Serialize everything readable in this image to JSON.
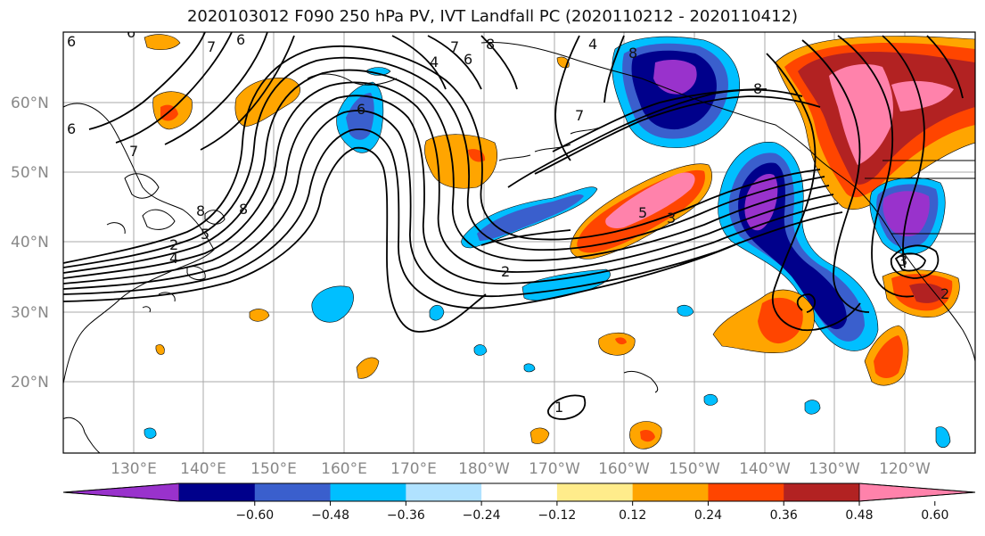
{
  "title": "2020103012 F090 250 hPa PV, IVT Landfall PC (2020110212 - 2020110412)",
  "lat_labels": [
    "60°N",
    "50°N",
    "40°N",
    "30°N",
    "20°N"
  ],
  "lon_labels": [
    "130°E",
    "140°E",
    "150°E",
    "160°E",
    "170°E",
    "180°W",
    "170°W",
    "160°W",
    "150°W",
    "140°W",
    "130°W",
    "120°W"
  ],
  "colorbar": {
    "ticks": [
      "−0.60",
      "−0.48",
      "−0.36",
      "−0.24",
      "−0.12",
      "0.12",
      "0.24",
      "0.36",
      "0.48",
      "0.60"
    ],
    "colors": [
      "#9932cc",
      "#00008b",
      "#3a5fcd",
      "#00bfff",
      "#b0e2ff",
      "#ffffff",
      "#ffec8b",
      "#ffa500",
      "#ff4500",
      "#b22222",
      "#ff82ab"
    ]
  },
  "contour_labels": [
    "6",
    "6",
    "7",
    "7",
    "8",
    "4",
    "6",
    "8",
    "4",
    "6",
    "7",
    "8",
    "6",
    "7",
    "8",
    "5",
    "3",
    "2",
    "5",
    "6",
    "8",
    "3",
    "2",
    "1",
    "2",
    "4"
  ],
  "icons": {
    "map": "north-pacific-basemap",
    "colorbar_left": "triangle-extension",
    "colorbar_right": "triangle-extension"
  }
}
